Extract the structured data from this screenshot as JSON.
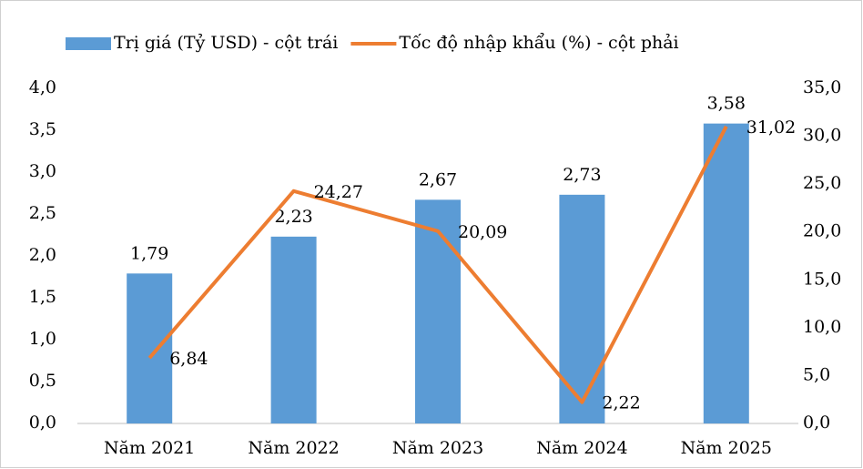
{
  "chart_data": {
    "type": "bar-line",
    "categories": [
      "Năm 2021",
      "Năm 2022",
      "Năm 2023",
      "Năm 2024",
      "Năm 2025"
    ],
    "series": [
      {
        "name": "Trị giá (Tỷ USD) - cột trái",
        "type": "bar",
        "color": "#5b9bd5",
        "values": [
          1.79,
          2.23,
          2.67,
          2.73,
          3.58
        ],
        "value_labels": [
          "1,79",
          "2,23",
          "2,67",
          "2,73",
          "3,58"
        ]
      },
      {
        "name": "Tốc độ nhập khẩu (%) - cột phải",
        "type": "line",
        "axis": "y2",
        "color": "#ed7d31",
        "values": [
          6.84,
          24.27,
          20.09,
          2.22,
          31.02
        ],
        "value_labels": [
          "6,84",
          "24,27",
          "20,09",
          "2,22",
          "31,02"
        ]
      }
    ],
    "ylim": [
      0,
      4
    ],
    "yticks": [
      {
        "value": 0,
        "label": "0,0"
      },
      {
        "value": 0.5,
        "label": "0,5"
      },
      {
        "value": 1,
        "label": "1,0"
      },
      {
        "value": 1.5,
        "label": "1,5"
      },
      {
        "value": 2,
        "label": "2,0"
      },
      {
        "value": 2.5,
        "label": "2,5"
      },
      {
        "value": 3,
        "label": "3,0"
      },
      {
        "value": 3.5,
        "label": "3,5"
      },
      {
        "value": 4,
        "label": "4,0"
      }
    ],
    "y2lim": [
      0,
      35
    ],
    "y2ticks": [
      {
        "value": 0,
        "label": "0,0"
      },
      {
        "value": 5,
        "label": "5,0"
      },
      {
        "value": 10,
        "label": "10,0"
      },
      {
        "value": 15,
        "label": "15,0"
      },
      {
        "value": 20,
        "label": "20,0"
      },
      {
        "value": 25,
        "label": "25,0"
      },
      {
        "value": 30,
        "label": "30,0"
      },
      {
        "value": 35,
        "label": "35,0"
      }
    ],
    "legend": "top"
  }
}
